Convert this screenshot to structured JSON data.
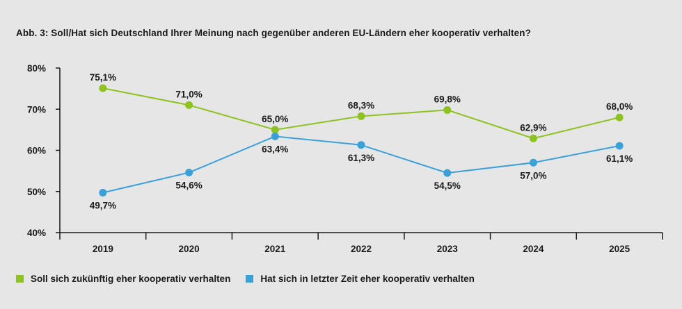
{
  "title": "Abb. 3: Soll/Hat sich Deutschland Ihrer Meinung nach gegenüber anderen EU-Ländern eher kooperativ verhalten?",
  "chart_data": {
    "type": "line",
    "title": "Abb. 3: Soll/Hat sich Deutschland Ihrer Meinung nach gegenüber anderen EU-Ländern eher kooperativ verhalten?",
    "x": [
      "2019",
      "2020",
      "2021",
      "2022",
      "2023",
      "2024",
      "2025"
    ],
    "ylim": [
      40,
      80
    ],
    "yticks": [
      40,
      50,
      60,
      70,
      80
    ],
    "ytick_labels": [
      "40%",
      "50%",
      "60%",
      "70%",
      "80%"
    ],
    "grid": false,
    "legend_position": "bottom-left",
    "series": [
      {
        "name": "Soll sich zukünftig eher kooperativ verhalten",
        "color": "#8dc21f",
        "values": [
          75.1,
          71.0,
          65.0,
          68.3,
          69.8,
          62.9,
          68.0
        ],
        "labels": [
          "75,1%",
          "71,0%",
          "65,0%",
          "68,3%",
          "69,8%",
          "62,9%",
          "68,0%"
        ]
      },
      {
        "name": "Hat sich in letzter Zeit eher kooperativ verhalten",
        "color": "#3aa0d8",
        "values": [
          49.7,
          54.6,
          63.4,
          61.3,
          54.5,
          57.0,
          61.1
        ],
        "labels": [
          "49,7%",
          "54,6%",
          "63,4%",
          "61,3%",
          "54,5%",
          "57,0%",
          "61,1%"
        ]
      }
    ]
  }
}
